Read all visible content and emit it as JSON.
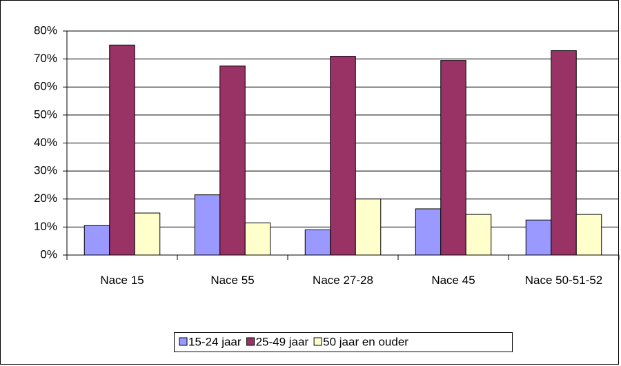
{
  "chart_data": {
    "type": "bar",
    "categories": [
      "Nace 15",
      "Nace 55",
      "Nace 27-28",
      "Nace 45",
      "Nace 50-51-52"
    ],
    "series": [
      {
        "name": "15-24 jaar",
        "color": "#9999ff",
        "values": [
          10.5,
          21.5,
          9,
          16.5,
          12.5
        ]
      },
      {
        "name": "25-49 jaar",
        "color": "#993366",
        "values": [
          75,
          67.5,
          71,
          69.5,
          73
        ]
      },
      {
        "name": "50 jaar en ouder",
        "color": "#ffffcc",
        "values": [
          15,
          11.5,
          20,
          14.5,
          14.5
        ]
      }
    ],
    "ylim": [
      0,
      80
    ],
    "yticks": [
      {
        "value": 0,
        "label": "0%"
      },
      {
        "value": 10,
        "label": "10%"
      },
      {
        "value": 20,
        "label": "20%"
      },
      {
        "value": 30,
        "label": "30%"
      },
      {
        "value": 40,
        "label": "40%"
      },
      {
        "value": 50,
        "label": "50%"
      },
      {
        "value": 60,
        "label": "60%"
      },
      {
        "value": 70,
        "label": "70%"
      },
      {
        "value": 80,
        "label": "80%"
      }
    ],
    "grid": true,
    "legend": "bottom"
  }
}
